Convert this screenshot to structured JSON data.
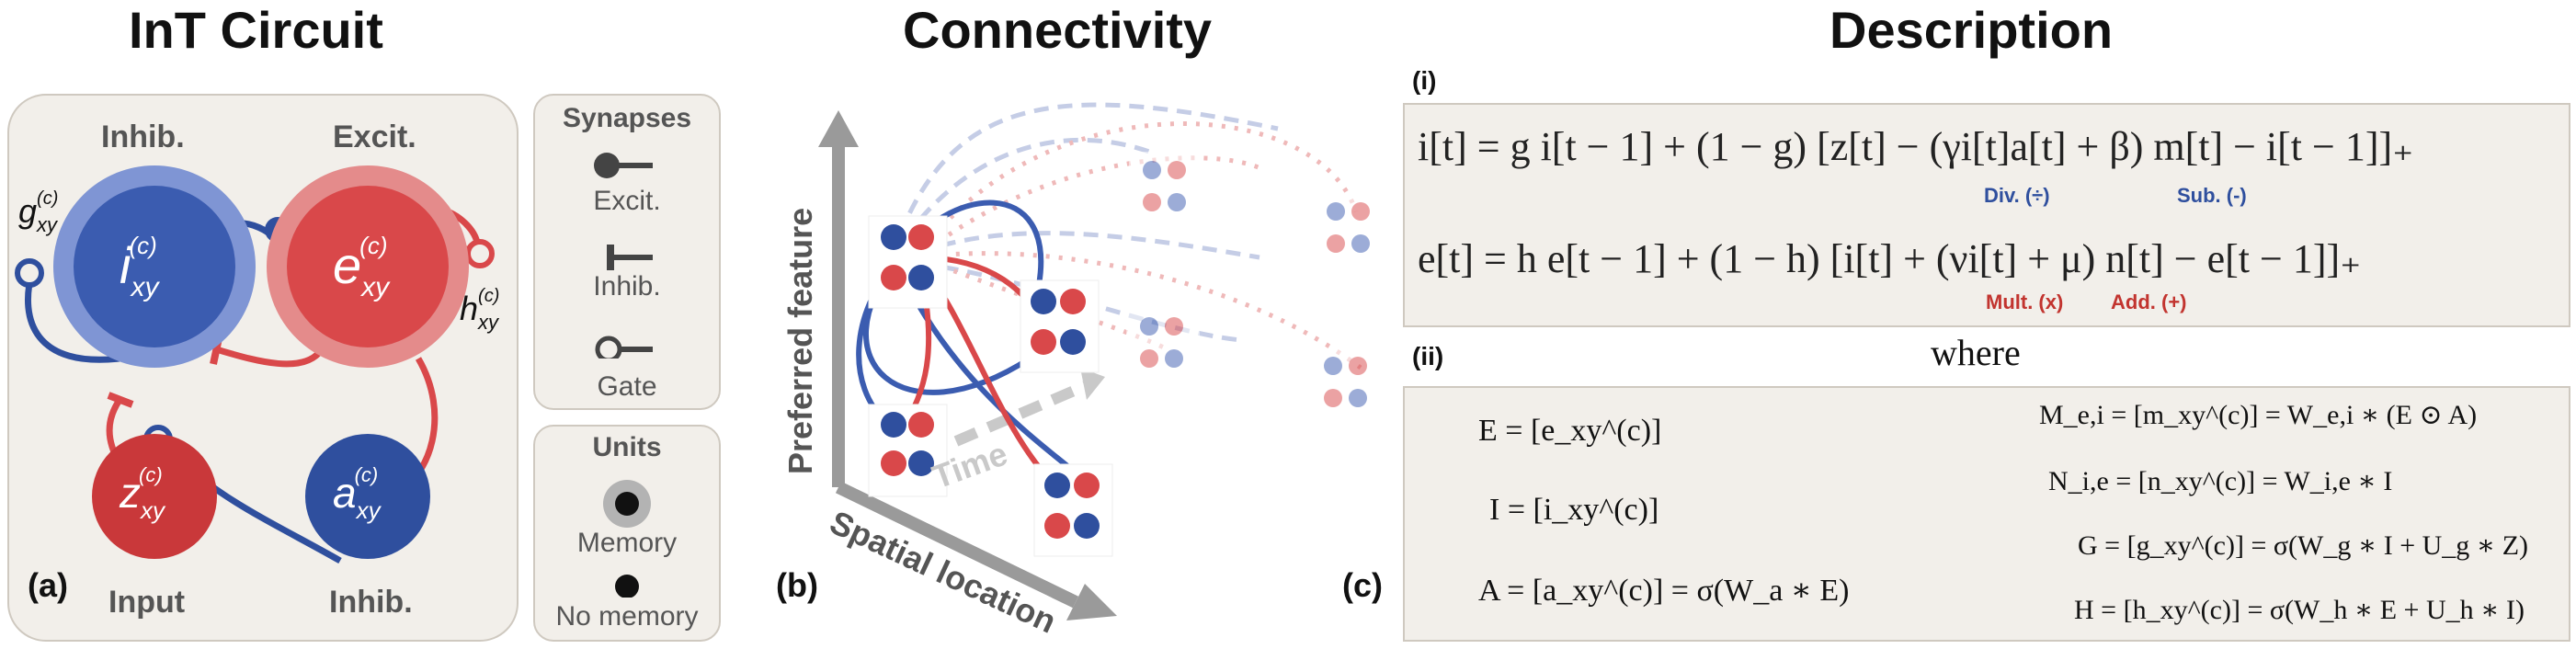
{
  "titles": {
    "circuit": "InT Circuit",
    "connectivity": "Connectivity",
    "description": "Description"
  },
  "panel_labels": {
    "a": "(a)",
    "b": "(b)",
    "c": "(c)",
    "i": "(i)",
    "ii": "(ii)"
  },
  "circuit": {
    "inhib_top": "Inhib.",
    "excit_top": "Excit.",
    "input_bottom": "Input",
    "inhib_bottom": "Inhib.",
    "node_i": "i",
    "node_e": "e",
    "node_z": "z",
    "node_a": "a",
    "sub": "xy",
    "sup": "(c)",
    "label_g": "g",
    "label_h": "h"
  },
  "legend": {
    "synapses_title": "Synapses",
    "excit": "Excit.",
    "inhib": "Inhib.",
    "gate": "Gate",
    "units_title": "Units",
    "memory": "Memory",
    "no_memory": "No memory"
  },
  "connectivity": {
    "y_axis": "Preferred feature",
    "x_axis": "Spatial location",
    "time": "Time"
  },
  "description": {
    "eq_i": "i[t] = g i[t − 1] + (1 − g) [z[t] − (γi[t]a[t] + β) m[t] − i[t − 1]]₊",
    "eq_e": "e[t] = h e[t − 1] + (1 − h) [i[t] + (νi[t] + μ) n[t] − e[t − 1]]₊",
    "div_note": "Div. (÷)",
    "sub_note": "Sub. (-)",
    "mult_note": "Mult. (x)",
    "add_note": "Add. (+)",
    "where": "where",
    "def_E": "E = [e_xy^(c)]",
    "def_I": "I = [i_xy^(c)]",
    "def_A": "A = [a_xy^(c)] = σ(W_a ∗ E)",
    "def_M": "M_e,i = [m_xy^(c)] = W_e,i ∗ (E ⊙ A)",
    "def_N": "N_i,e = [n_xy^(c)] = W_i,e ∗ I",
    "def_G": "G = [g_xy^(c)] = σ(W_g ∗ I + U_g ∗ Z)",
    "def_H": "H = [h_xy^(c)] = σ(W_h ∗ E + U_h ∗ I)"
  },
  "colors": {
    "blue": "#3b5cb0",
    "red": "#d9484a",
    "panel_bg": "#f2efea"
  }
}
